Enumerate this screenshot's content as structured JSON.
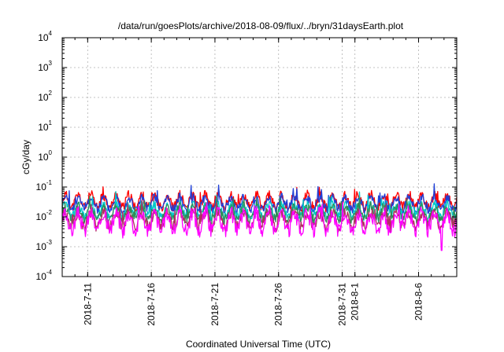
{
  "chart_data": {
    "type": "line",
    "title": "/data/run/goesPlots/archive/2018-08-09/flux/../bryn/31daysEarth.plot",
    "xlabel": "Coordinated Universal Time (UTC)",
    "ylabel": "cGy/day",
    "yscale": "log",
    "ylim": [
      0.0001,
      10000
    ],
    "xlim": [
      "2018-07-09",
      "2018-08-09"
    ],
    "grid": true,
    "y_ticks": [
      {
        "base": "10",
        "exp": "-4",
        "value": 0.0001
      },
      {
        "base": "10",
        "exp": "-3",
        "value": 0.001
      },
      {
        "base": "10",
        "exp": "-2",
        "value": 0.01
      },
      {
        "base": "10",
        "exp": "-1",
        "value": 0.1
      },
      {
        "base": "10",
        "exp": "0",
        "value": 1
      },
      {
        "base": "10",
        "exp": "1",
        "value": 10
      },
      {
        "base": "10",
        "exp": "2",
        "value": 100
      },
      {
        "base": "10",
        "exp": "3",
        "value": 1000
      },
      {
        "base": "10",
        "exp": "4",
        "value": 10000
      }
    ],
    "x_ticks": [
      "2018-7-11",
      "2018-7-16",
      "2018-7-21",
      "2018-7-26",
      "2018-7-31",
      "2018-8-1",
      "2018-8-6"
    ],
    "series": [
      {
        "color": "#ff0000",
        "base": 0.033,
        "spread": 0.38,
        "seed": 11
      },
      {
        "color": "#1f3fd6",
        "base": 0.028,
        "spread": 0.36,
        "seed": 23
      },
      {
        "color": "#00c8c8",
        "base": 0.016,
        "spread": 0.35,
        "seed": 37
      },
      {
        "color": "#2e8b57",
        "base": 0.013,
        "spread": 0.38,
        "seed": 41
      },
      {
        "color": "#b03060",
        "base": 0.008,
        "spread": 0.42,
        "seed": 53
      },
      {
        "color": "#ff00ff",
        "base": 0.0068,
        "spread": 0.55,
        "seed": 67,
        "dip": {
          "date": "2018-08-07.8",
          "value": 0.00075
        }
      }
    ]
  }
}
